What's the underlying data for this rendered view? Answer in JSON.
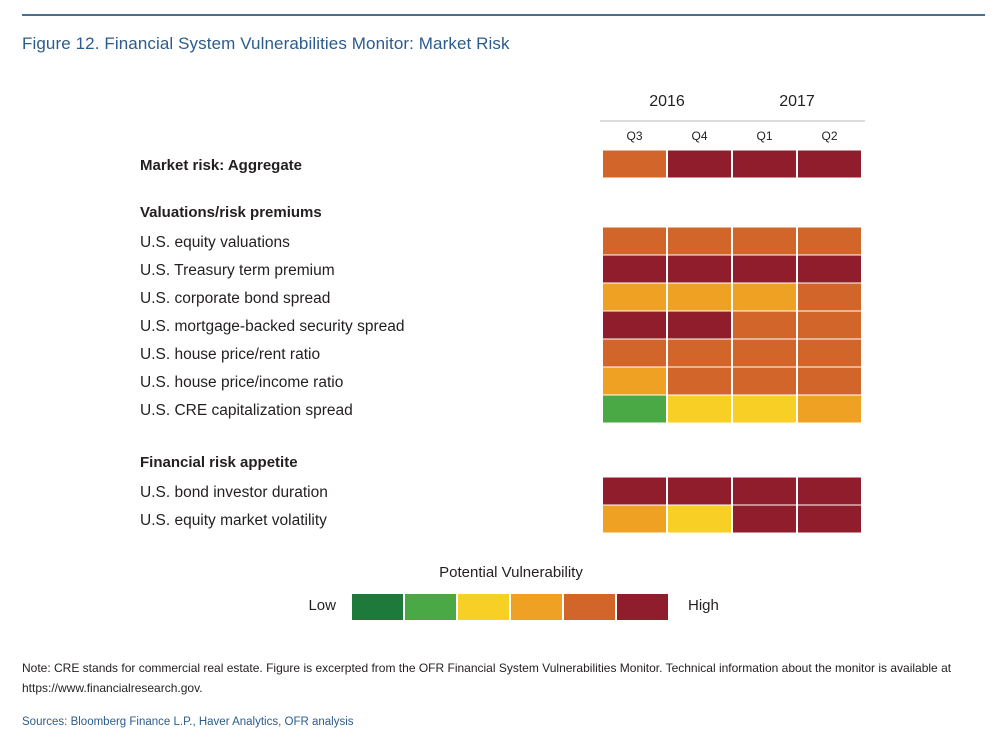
{
  "figure_title": "Figure 12. Financial System Vulnerabilities Monitor: Market Risk",
  "colors": {
    "title_blue": "#2c5c8c",
    "scale": [
      "#1d7a3a",
      "#4aa845",
      "#f7cf25",
      "#efa124",
      "#d2662a",
      "#8f1d2c"
    ]
  },
  "chart_data": {
    "type": "heatmap",
    "title": "Figure 12. Financial System Vulnerabilities Monitor: Market Risk",
    "years": [
      {
        "label": "2016",
        "quarters": [
          "Q3",
          "Q4"
        ]
      },
      {
        "label": "2017",
        "quarters": [
          "Q1",
          "Q2"
        ]
      }
    ],
    "columns": [
      "Q3",
      "Q4",
      "Q1",
      "Q2"
    ],
    "rows": [
      {
        "label": "Market risk: Aggregate",
        "bold": true,
        "values": [
          5,
          6,
          6,
          6
        ]
      },
      {
        "label": "Valuations/risk premiums",
        "bold": true,
        "header": true
      },
      {
        "label": "U.S. equity valuations",
        "values": [
          5,
          5,
          5,
          5
        ]
      },
      {
        "label": "U.S. Treasury term premium",
        "values": [
          6,
          6,
          6,
          6
        ]
      },
      {
        "label": "U.S. corporate bond spread",
        "values": [
          4,
          4,
          4,
          5
        ]
      },
      {
        "label": "U.S. mortgage-backed security spread",
        "values": [
          6,
          6,
          5,
          5
        ]
      },
      {
        "label": "U.S. house price/rent ratio",
        "values": [
          5,
          5,
          5,
          5
        ]
      },
      {
        "label": "U.S. house price/income ratio",
        "values": [
          4,
          5,
          5,
          5
        ]
      },
      {
        "label": "U.S. CRE capitalization spread",
        "values": [
          2,
          3,
          3,
          4
        ]
      },
      {
        "label": "Financial risk appetite",
        "bold": true,
        "header": true
      },
      {
        "label": "U.S. bond investor duration",
        "values": [
          6,
          6,
          6,
          6
        ]
      },
      {
        "label": "U.S. equity market volatility",
        "values": [
          4,
          3,
          6,
          6
        ]
      }
    ],
    "scale_levels": [
      1,
      2,
      3,
      4,
      5,
      6
    ],
    "legend": {
      "title": "Potential Vulnerability",
      "low": "Low",
      "high": "High"
    }
  },
  "note": "Note: CRE stands for commercial real estate. Figure is excerpted from the OFR Financial System Vulnerabilities Monitor. Technical information about the monitor is available at https://www.financialresearch.gov.",
  "sources": "Sources: Bloomberg Finance L.P., Haver Analytics, OFR analysis"
}
